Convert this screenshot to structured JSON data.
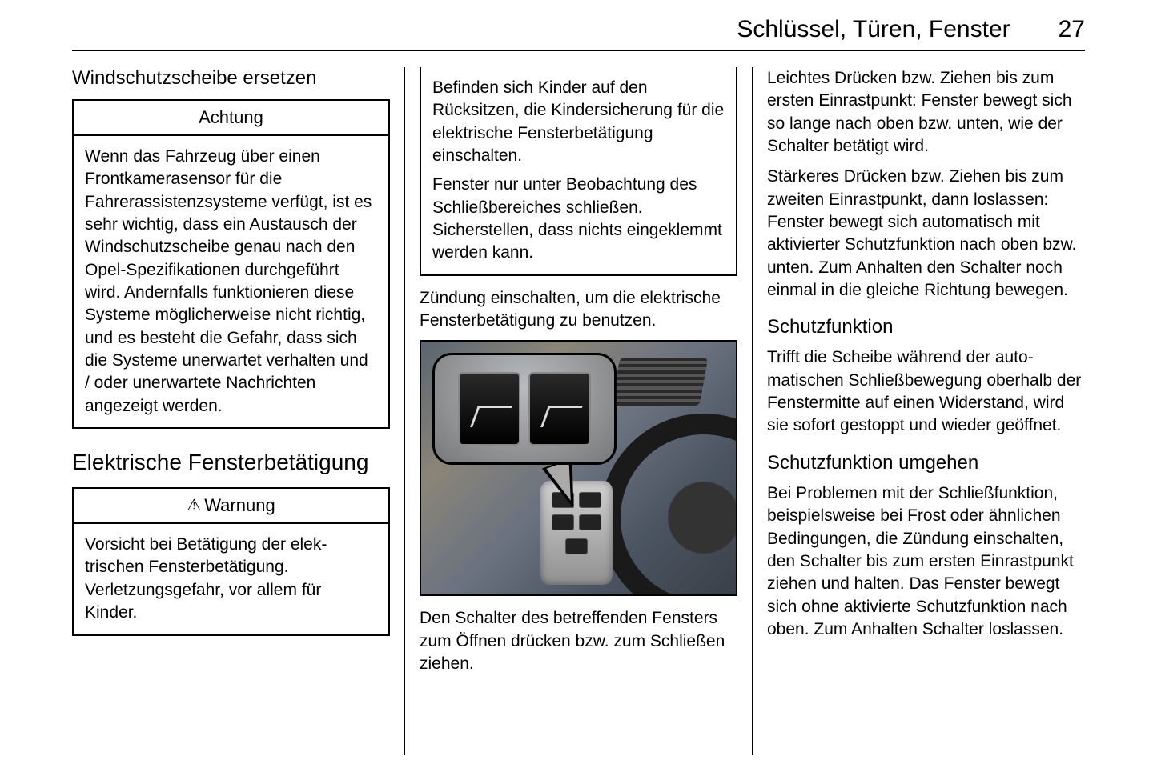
{
  "header": {
    "title": "Schlüssel, Türen, Fenster",
    "page_number": "27"
  },
  "col1": {
    "subheading": "Windschutzscheibe ersetzen",
    "achtung_box": {
      "title": "Achtung",
      "body": "Wenn das Fahrzeug über einen Frontkamerasensor für die Fahrerassistenzsysteme verfügt, ist es sehr wichtig, dass ein Austausch der Windschutz­scheibe genau nach den Opel-Spezifikationen durchgeführt wird. Andernfalls funktionieren diese Systeme möglicherweise nicht richtig, und es besteht die Gefahr, dass sich die Systeme unerwartet verhalten und / oder unerwartete Nachrichten angezeigt werden."
    },
    "section_heading": "Elektrische Fensterbetätigung",
    "warnung_box": {
      "title": "Warnung",
      "body": "Vorsicht bei Betätigung der elek­trischen Fensterbetätigung. Verletzungsgefahr, vor allem für Kinder."
    }
  },
  "col2": {
    "warn_cont_p1": "Befinden sich Kinder auf den Rücksitzen, die Kindersicherung für die elektrische Fensterbetäti­gung einschalten.",
    "warn_cont_p2": "Fenster nur unter Beobachtung des Schließbereiches schließen. Sicherstellen, dass nichts einge­klemmt werden kann.",
    "para1": "Zündung einschalten, um die elektri­sche Fensterbetätigung zu benutzen.",
    "caption": "Den Schalter des betreffenden Fens­ters zum Öffnen drücken bzw. zum Schließen ziehen."
  },
  "col3": {
    "para1": "Leichtes Drücken bzw. Ziehen bis zum ersten Einrastpunkt: Fenster bewegt sich so lange nach oben bzw. unten, wie der Schalter betätigt wird.",
    "para2": "Stärkeres Drücken bzw. Ziehen bis zum zweiten Einrastpunkt, dann loslassen: Fenster bewegt sich auto­matisch mit aktivierter Schutzfunktion nach oben bzw. unten. Zum Anhalten den Schalter noch einmal in die gleiche Richtung bewegen.",
    "h3a": "Schutzfunktion",
    "para3": "Trifft die Scheibe während der auto­matischen Schließbewegung ober­halb der Fenstermitte auf einen Widerstand, wird sie sofort gestoppt und wieder geöffnet.",
    "h3b": "Schutzfunktion umgehen",
    "para4": "Bei Problemen mit der Schließfunk­tion, beispielsweise bei Frost oder ähnlichen Bedingungen, die Zündung einschalten, den Schalter bis zum ersten Einrastpunkt ziehen und halten. Das Fenster bewegt sich ohne aktivierte Schutzfunktion nach oben. Zum Anhalten Schalter loslassen."
  }
}
